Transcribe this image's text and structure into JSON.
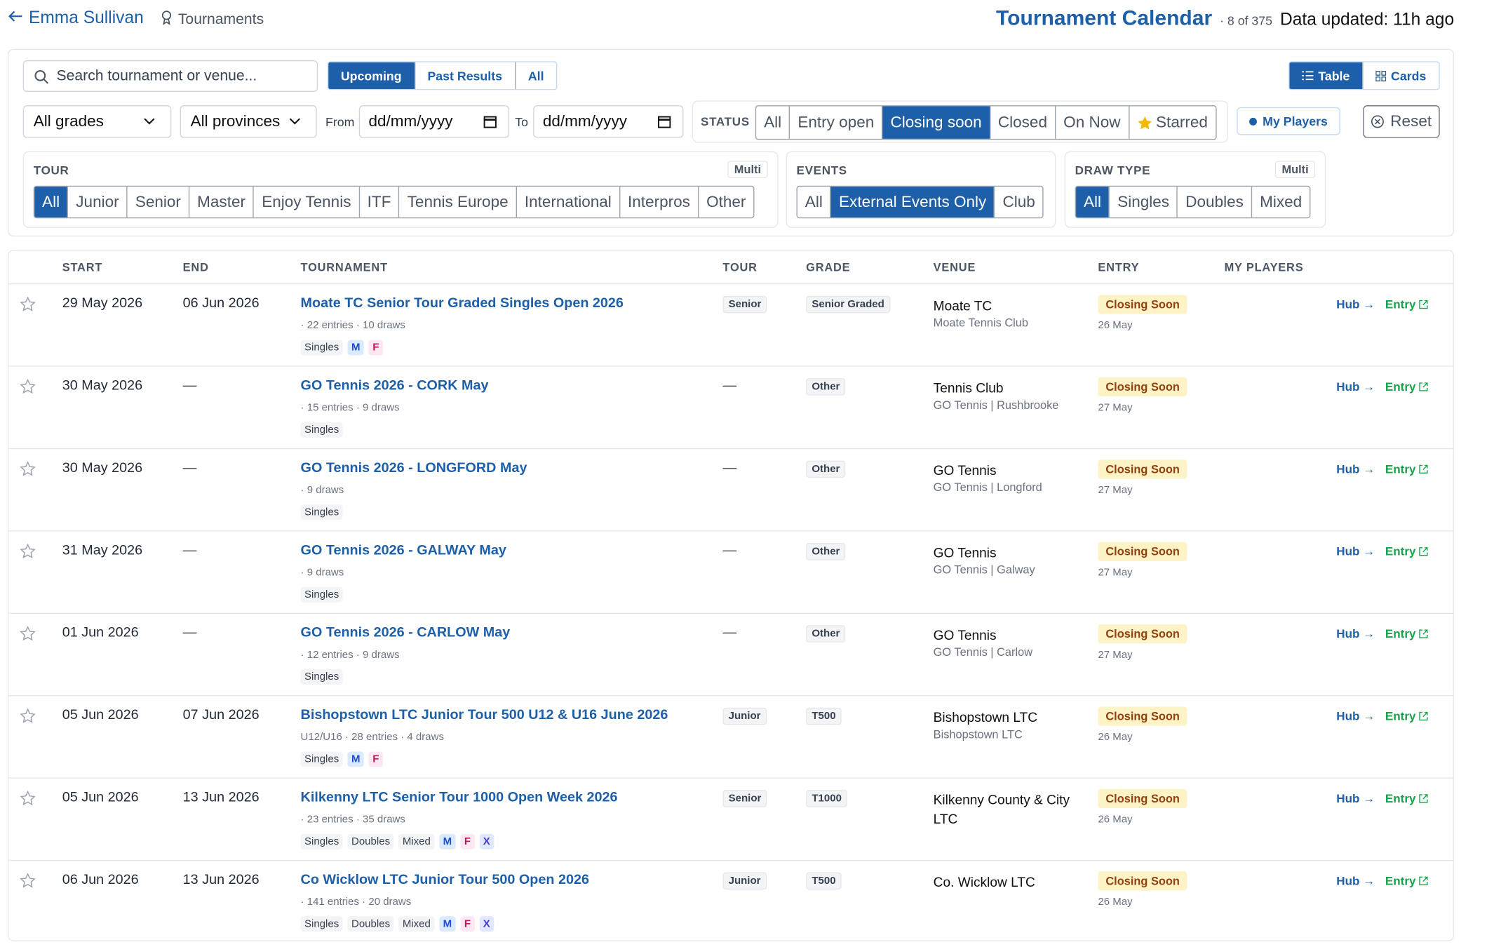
{
  "header": {
    "back_label": "Emma Sullivan",
    "breadcrumb": "Tournaments",
    "title": "Tournament Calendar",
    "count": "· 8 of 375",
    "updated": "Data updated: 11h ago"
  },
  "filters": {
    "search_placeholder": "Search tournament or venue...",
    "period": {
      "options": [
        "Upcoming",
        "Past Results",
        "All"
      ],
      "active": 0
    },
    "view": {
      "options": [
        "Table",
        "Cards"
      ],
      "active": 0
    },
    "grade": "All grades",
    "province": "All provinces",
    "from_label": "From",
    "to_label": "To",
    "from_placeholder": "dd/mm/yyyy",
    "to_placeholder": "dd/mm/yyyy",
    "status": {
      "label": "STATUS",
      "options": [
        "All",
        "Entry open",
        "Closing soon",
        "Closed",
        "On Now",
        "Starred"
      ],
      "active": 2
    },
    "my_players": "My Players",
    "reset": "Reset",
    "tour": {
      "label": "TOUR",
      "multi": "Multi",
      "options": [
        "All",
        "Junior",
        "Senior",
        "Master",
        "Enjoy Tennis",
        "ITF",
        "Tennis Europe",
        "International",
        "Interpros",
        "Other"
      ],
      "active": 0
    },
    "events": {
      "label": "EVENTS",
      "options": [
        "All",
        "External Events Only",
        "Club"
      ],
      "active": 1
    },
    "draw_type": {
      "label": "DRAW TYPE",
      "multi": "Multi",
      "options": [
        "All",
        "Singles",
        "Doubles",
        "Mixed"
      ],
      "active": 0
    }
  },
  "table": {
    "columns": [
      "START",
      "END",
      "TOURNAMENT",
      "TOUR",
      "GRADE",
      "VENUE",
      "ENTRY",
      "MY PLAYERS"
    ],
    "rows": [
      {
        "start": "29 May 2026",
        "end": "06 Jun 2026",
        "name": "Moate TC Senior Tour Graded Singles Open 2026",
        "meta": "· 22 entries · 10 draws",
        "draws": [
          "Singles"
        ],
        "genders": [
          {
            "label": "M",
            "color": "#1d4ed8",
            "bg": "#dbeafe"
          },
          {
            "label": "F",
            "color": "#be185d",
            "bg": "#fce7f3"
          }
        ],
        "tour": "Senior",
        "grade": "Senior Graded",
        "venue": "Moate TC",
        "venue_sub": "Moate Tennis Club",
        "entry_status": "Closing Soon",
        "entry_date": "26 May",
        "hub": "Hub →",
        "entry_link": "Entry"
      },
      {
        "start": "30 May 2026",
        "end": "—",
        "name": "GO Tennis 2026 - CORK May",
        "meta": "· 15 entries · 9 draws",
        "draws": [
          "Singles"
        ],
        "genders": [],
        "tour": "—",
        "grade": "Other",
        "venue": "Tennis Club",
        "venue_sub": "GO Tennis | Rushbrooke",
        "entry_status": "Closing Soon",
        "entry_date": "27 May",
        "hub": "Hub →",
        "entry_link": "Entry"
      },
      {
        "start": "30 May 2026",
        "end": "—",
        "name": "GO Tennis 2026 - LONGFORD May",
        "meta": "· 9 draws",
        "draws": [
          "Singles"
        ],
        "genders": [],
        "tour": "—",
        "grade": "Other",
        "venue": "GO Tennis",
        "venue_sub": "GO Tennis | Longford",
        "entry_status": "Closing Soon",
        "entry_date": "27 May",
        "hub": "Hub →",
        "entry_link": "Entry"
      },
      {
        "start": "31 May 2026",
        "end": "—",
        "name": "GO Tennis 2026 - GALWAY May",
        "meta": "· 9 draws",
        "draws": [
          "Singles"
        ],
        "genders": [],
        "tour": "—",
        "grade": "Other",
        "venue": "GO Tennis",
        "venue_sub": "GO Tennis | Galway",
        "entry_status": "Closing Soon",
        "entry_date": "27 May",
        "hub": "Hub →",
        "entry_link": "Entry"
      },
      {
        "start": "01 Jun 2026",
        "end": "—",
        "name": "GO Tennis 2026 - CARLOW May",
        "meta": "· 12 entries · 9 draws",
        "draws": [
          "Singles"
        ],
        "genders": [],
        "tour": "—",
        "grade": "Other",
        "venue": "GO Tennis",
        "venue_sub": "GO Tennis | Carlow",
        "entry_status": "Closing Soon",
        "entry_date": "27 May",
        "hub": "Hub →",
        "entry_link": "Entry"
      },
      {
        "start": "05 Jun 2026",
        "end": "07 Jun 2026",
        "name": "Bishopstown LTC Junior Tour 500 U12 & U16 June 2026",
        "meta": "U12/U16 · 28 entries · 4 draws",
        "draws": [
          "Singles"
        ],
        "genders": [
          {
            "label": "M",
            "color": "#1d4ed8",
            "bg": "#dbeafe"
          },
          {
            "label": "F",
            "color": "#be185d",
            "bg": "#fce7f3"
          }
        ],
        "tour": "Junior",
        "grade": "T500",
        "venue": "Bishopstown LTC",
        "venue_sub": "Bishopstown LTC",
        "entry_status": "Closing Soon",
        "entry_date": "26 May",
        "hub": "Hub →",
        "entry_link": "Entry"
      },
      {
        "start": "05 Jun 2026",
        "end": "13 Jun 2026",
        "name": "Kilkenny LTC Senior Tour 1000 Open Week 2026",
        "meta": "· 23 entries · 35 draws",
        "draws": [
          "Singles",
          "Doubles",
          "Mixed"
        ],
        "genders": [
          {
            "label": "M",
            "color": "#1d4ed8",
            "bg": "#dbeafe"
          },
          {
            "label": "F",
            "color": "#be185d",
            "bg": "#fce7f3"
          },
          {
            "label": "X",
            "color": "#4338ca",
            "bg": "#e0e7ff"
          }
        ],
        "tour": "Senior",
        "grade": "T1000",
        "venue": "Kilkenny County & City LTC",
        "venue_sub": null,
        "entry_status": "Closing Soon",
        "entry_date": "26 May",
        "hub": "Hub →",
        "entry_link": "Entry"
      },
      {
        "start": "06 Jun 2026",
        "end": "13 Jun 2026",
        "name": "Co Wicklow LTC Junior Tour 500 Open 2026",
        "meta": "· 141 entries · 20 draws",
        "draws": [
          "Singles",
          "Doubles",
          "Mixed"
        ],
        "genders": [
          {
            "label": "M",
            "color": "#1d4ed8",
            "bg": "#dbeafe"
          },
          {
            "label": "F",
            "color": "#be185d",
            "bg": "#fce7f3"
          },
          {
            "label": "X",
            "color": "#4338ca",
            "bg": "#e0e7ff"
          }
        ],
        "tour": "Junior",
        "grade": "T500",
        "venue": "Co. Wicklow LTC",
        "venue_sub": null,
        "entry_status": "Closing Soon",
        "entry_date": "26 May",
        "hub": "Hub →",
        "entry_link": "Entry"
      }
    ]
  }
}
